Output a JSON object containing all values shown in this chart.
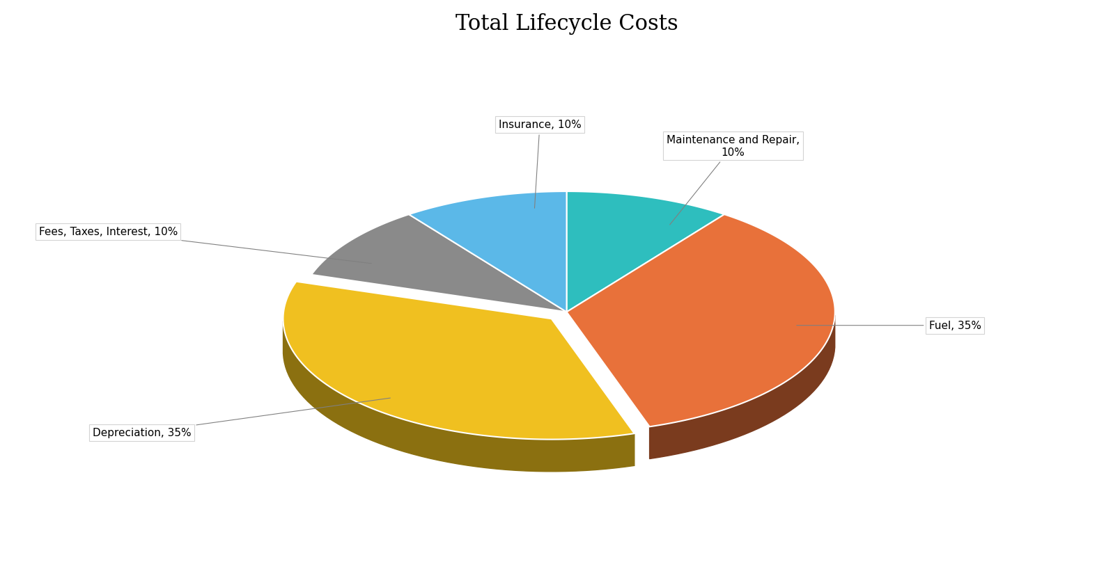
{
  "title": "Total Lifecycle Costs",
  "title_fontsize": 22,
  "slices": [
    {
      "label": "Maintenance and Repair,\n10%",
      "value": 10,
      "color": "#2EBEBE",
      "dark_color": "#1A7070",
      "explode": 0.0
    },
    {
      "label": "Fuel, 35%",
      "value": 35,
      "color": "#E8713A",
      "dark_color": "#7A3B1E",
      "explode": 0.0
    },
    {
      "label": "Depreciation, 35%",
      "value": 35,
      "color": "#F0C020",
      "dark_color": "#8B7010",
      "explode": 0.08
    },
    {
      "label": "Fees, Taxes, Interest, 10%",
      "value": 10,
      "color": "#8A8A8A",
      "dark_color": "#4A4A4A",
      "explode": 0.0
    },
    {
      "label": "Insurance, 10%",
      "value": 10,
      "color": "#5BB8E8",
      "dark_color": "#2A6080",
      "explode": 0.0
    }
  ],
  "background_color": "#FFFFFF",
  "label_fontsize": 11,
  "startangle": 90,
  "depth": 0.12,
  "yscale": 0.45
}
